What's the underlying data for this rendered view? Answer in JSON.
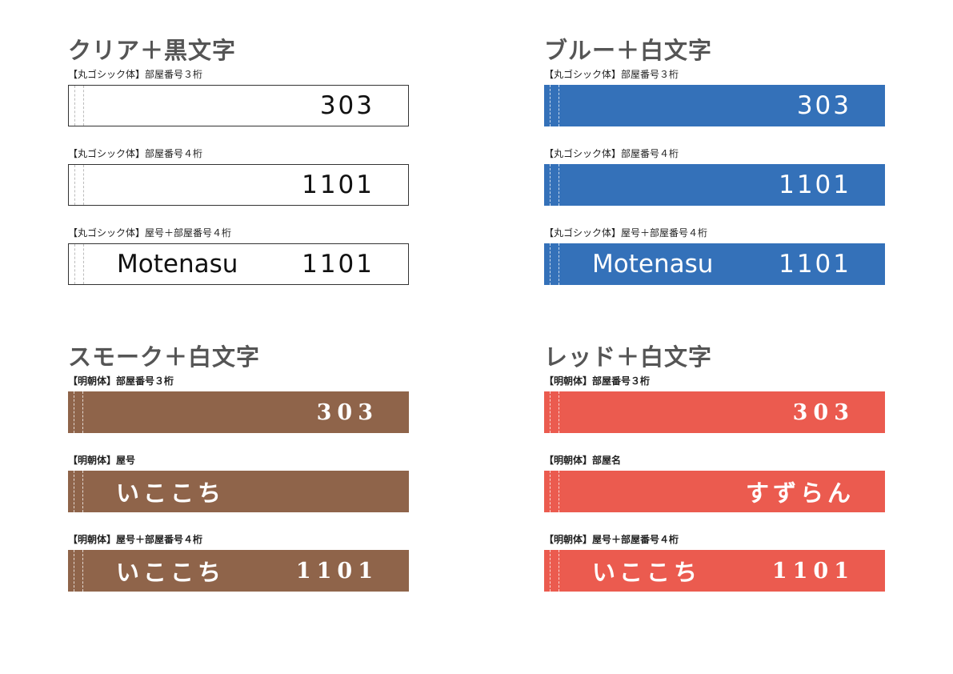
{
  "colors": {
    "clear": "#ffffff",
    "blue": "#3471b9",
    "smoke": "#8f644a",
    "red": "#eb5b4f",
    "title_text": "#555555"
  },
  "sections": {
    "clear": {
      "title": "クリア＋黒文字",
      "plates": [
        {
          "caption": "【丸ゴシック体】部屋番号３桁",
          "name": "",
          "number": "303"
        },
        {
          "caption": "【丸ゴシック体】部屋番号４桁",
          "name": "",
          "number": "1101"
        },
        {
          "caption": "【丸ゴシック体】屋号＋部屋番号４桁",
          "name": "Motenasu",
          "number": "1101"
        }
      ]
    },
    "blue": {
      "title": "ブルー＋白文字",
      "plates": [
        {
          "caption": "【丸ゴシック体】部屋番号３桁",
          "name": "",
          "number": "303"
        },
        {
          "caption": "【丸ゴシック体】部屋番号４桁",
          "name": "",
          "number": "1101"
        },
        {
          "caption": "【丸ゴシック体】屋号＋部屋番号４桁",
          "name": "Motenasu",
          "number": "1101"
        }
      ]
    },
    "smoke": {
      "title": "スモーク＋白文字",
      "plates": [
        {
          "caption": "【明朝体】部屋番号３桁",
          "name": "",
          "number": "303"
        },
        {
          "caption": "【明朝体】屋号",
          "name": "いここち",
          "number": ""
        },
        {
          "caption": "【明朝体】屋号＋部屋番号４桁",
          "name": "いここち",
          "number": "1101"
        }
      ]
    },
    "red": {
      "title": "レッド＋白文字",
      "plates": [
        {
          "caption": "【明朝体】部屋番号３桁",
          "name": "",
          "number": "303"
        },
        {
          "caption": "【明朝体】部屋名",
          "name": "すずらん",
          "number": ""
        },
        {
          "caption": "【明朝体】屋号＋部屋番号４桁",
          "name": "いここち",
          "number": "1101"
        }
      ]
    }
  }
}
